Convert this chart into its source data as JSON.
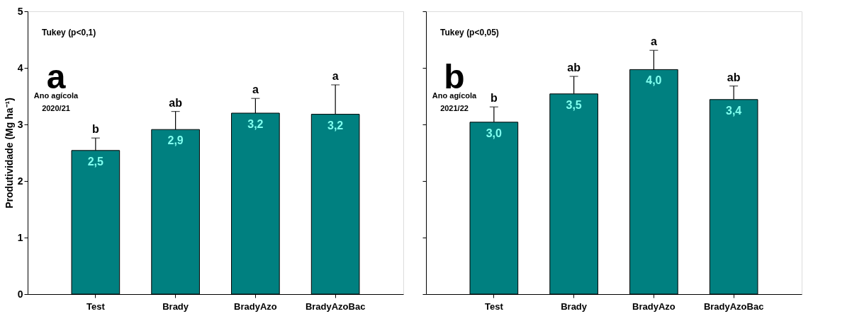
{
  "chart_data": [
    {
      "type": "bar",
      "ylabel": "Produtividade (Mg ha⁻¹)",
      "categories": [
        "Test",
        "Brady",
        "BradyAzo",
        "BradyAzoBac"
      ],
      "series": [
        {
          "color": "#008080",
          "values": [
            2.54,
            2.91,
            3.2,
            3.18
          ],
          "value_labels": [
            "2,5",
            "2,9",
            "3,2",
            "3,2"
          ],
          "errors": [
            [
              2.54,
              2.76
            ],
            [
              2.91,
              3.23
            ],
            [
              3.2,
              3.46
            ],
            [
              3.18,
              3.7
            ]
          ]
        }
      ],
      "ylim": [
        0,
        5
      ],
      "yticks": [
        0,
        1,
        2,
        3,
        4,
        5
      ],
      "grid": false,
      "annotations": [
        "Tukey (p<0,1)",
        "a",
        "Ano agícola\n2020/21",
        {
          "text": "b",
          "x": "Test",
          "y": 2.76
        },
        {
          "text": "ab",
          "x": "Brady",
          "y": 3.23
        },
        {
          "text": "a",
          "x": "BradyAzo",
          "y": 3.46
        },
        {
          "text": "a",
          "x": "BradyAzoBac",
          "y": 3.7
        }
      ]
    },
    {
      "type": "bar",
      "categories": [
        "Test",
        "Brady",
        "BradyAzo",
        "BradyAzoBac"
      ],
      "series": [
        {
          "color": "#008080",
          "values": [
            3.04,
            3.54,
            3.97,
            3.44
          ],
          "value_labels": [
            "3,0",
            "3,5",
            "4,0",
            "3,4"
          ],
          "errors": [
            [
              3.04,
              3.31
            ],
            [
              3.54,
              3.85
            ],
            [
              3.97,
              4.31
            ],
            [
              3.44,
              3.68
            ]
          ]
        }
      ],
      "ylim": [
        0,
        5
      ],
      "yticks": [
        0,
        1,
        2,
        3,
        4,
        5
      ],
      "tick_labels": "x",
      "grid": false,
      "annotations": [
        "Tukey (p<0,05)",
        "b",
        "Ano agícola\n2021/22",
        {
          "text": "b",
          "x": "Test",
          "y": 3.31
        },
        {
          "text": "ab",
          "x": "Brady",
          "y": 3.85
        },
        {
          "text": "a",
          "x": "BradyAzo",
          "y": 4.31
        },
        {
          "text": "ab",
          "x": "BradyAzoBac",
          "y": 3.68
        }
      ]
    }
  ]
}
